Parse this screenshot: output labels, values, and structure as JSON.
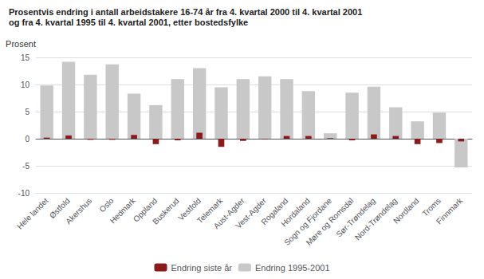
{
  "chart_data": {
    "type": "bar",
    "title": "Prosentvis endring i antall arbeidstakere 16-74 år fra 4. kvartal 2000 til 4. kvartal 2001",
    "subtitle": "og fra 4. kvartal 1995 til 4. kvartal 2001, etter bostedsfylke",
    "ylabel": "Prosent",
    "categories": [
      "Hele landet",
      "Østfold",
      "Akershus",
      "Oslo",
      "Hedmark",
      "Oppland",
      "Buskerud",
      "Vestfold",
      "Telemark",
      "Aust-Agder",
      "Vest-Agder",
      "Rogaland",
      "Hordaland",
      "Sogn og Fjordane",
      "Møre og Romsdal",
      "Sør-Trøndelag",
      "Nord-Trøndelag",
      "Nordland",
      "Troms",
      "Finnmark"
    ],
    "series": [
      {
        "name": "Endring 1995-2001",
        "color": "#c8c8c8",
        "values": [
          9.8,
          14.2,
          11.8,
          13.7,
          8.3,
          6.2,
          11.0,
          13.0,
          9.5,
          11.0,
          11.5,
          11.0,
          8.8,
          1.0,
          8.5,
          9.6,
          5.8,
          3.2,
          4.8,
          -5.3
        ]
      },
      {
        "name": "Endring siste år",
        "color": "#8b1a1a",
        "values": [
          0.2,
          0.6,
          -0.2,
          -0.2,
          0.7,
          -1.0,
          -0.3,
          1.1,
          -1.5,
          -0.4,
          -0.1,
          0.5,
          0.5,
          0.1,
          -0.3,
          0.8,
          0.5,
          -1.0,
          -0.8,
          -0.5
        ]
      }
    ],
    "ylim": [
      -10,
      15
    ],
    "yticks": [
      -10,
      -5,
      0,
      5,
      10,
      15
    ],
    "grid": true,
    "legend": "bottom"
  }
}
